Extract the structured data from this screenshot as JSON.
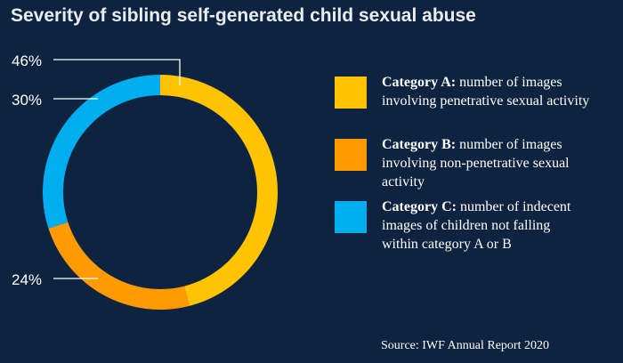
{
  "title": "Severity of sibling self-generated child sexual abuse",
  "source": "Source: IWF Annual Report 2020",
  "colors": {
    "background": "#0e2340",
    "category_a": "#ffc400",
    "category_b": "#ff9b00",
    "category_c": "#00aeef"
  },
  "chart_data": {
    "type": "pie",
    "title": "Severity of sibling self-generated child sexual abuse",
    "categories": [
      "Category A",
      "Category B",
      "Category C"
    ],
    "values": [
      46,
      24,
      30
    ],
    "value_labels": [
      "46%",
      "24%",
      "30%"
    ],
    "donut": true,
    "legend_position": "right"
  },
  "legend": [
    {
      "key": "category_a",
      "name": "Category A:",
      "line1": " number of images",
      "line2": "involving penetrative sexual activity",
      "line3": ""
    },
    {
      "key": "category_b",
      "name": "Category B:",
      "line1": " number of images",
      "line2": "involving non-penetrative sexual",
      "line3": "activity"
    },
    {
      "key": "category_c",
      "name": "Category C:",
      "line1": " number of indecent",
      "line2": "images of children not falling",
      "line3": "within category A or B"
    }
  ]
}
